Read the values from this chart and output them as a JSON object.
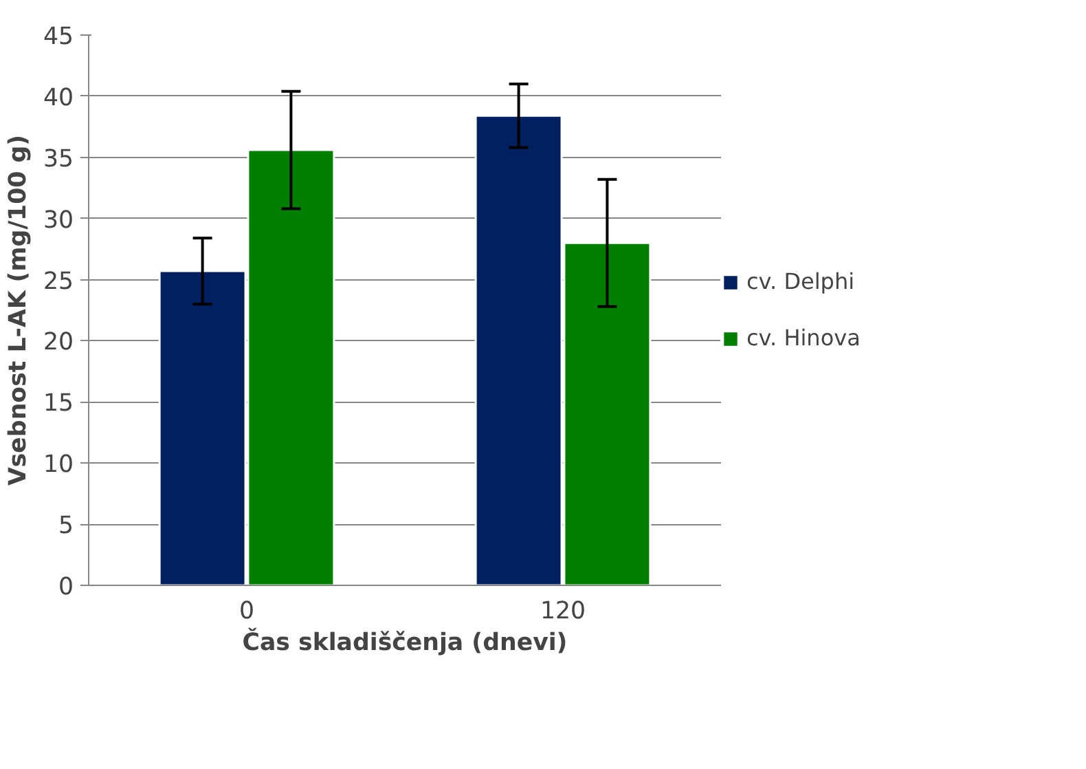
{
  "chart_data": {
    "type": "bar",
    "xlabel": "Čas skladiščenja (dnevi)",
    "ylabel": "Vsebnost L-AK (mg/100 g)",
    "categories": [
      "0",
      "120"
    ],
    "series": [
      {
        "name": "cv. Delphi",
        "color": "#002060",
        "values": [
          25.7,
          38.4
        ],
        "errors": [
          2.7,
          2.6
        ]
      },
      {
        "name": "cv. Hinova",
        "color": "#007f00",
        "values": [
          35.6,
          28.0
        ],
        "errors": [
          4.8,
          5.2
        ]
      }
    ],
    "ylim": [
      0,
      45
    ],
    "yticks": [
      0,
      5,
      10,
      15,
      20,
      25,
      30,
      35,
      40,
      45
    ],
    "grid": "y",
    "legend": "right"
  }
}
